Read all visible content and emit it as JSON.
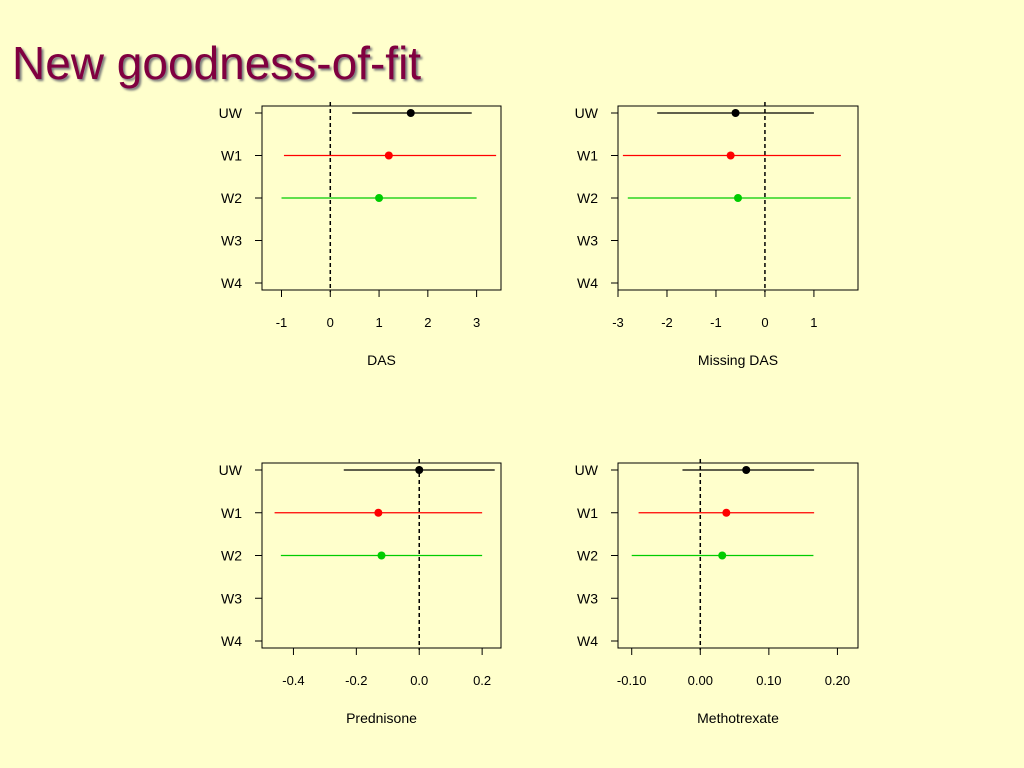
{
  "slide": {
    "title": "New goodness-of-fit"
  },
  "colors": {
    "UW": "#000000",
    "W1": "#FF0000",
    "W2": "#00CC00",
    "W3": "#0000FF",
    "W4": "#00CCCC",
    "title": "#800040",
    "background": "#FFFFCC"
  },
  "chart_data": [
    {
      "type": "forest",
      "xlabel": "DAS",
      "categories": [
        "UW",
        "W1",
        "W2",
        "W3",
        "W4"
      ],
      "xlim": [
        -1.4,
        3.5
      ],
      "xticks": [
        -1,
        0,
        1,
        2,
        3
      ],
      "xtick_labels": [
        "-1",
        "0",
        "1",
        "2",
        "3"
      ],
      "reference_line": 0,
      "estimates": [
        {
          "label": "UW",
          "est": 1.65,
          "lo": 0.45,
          "hi": 2.9
        },
        {
          "label": "W1",
          "est": 1.2,
          "lo": -0.95,
          "hi": 3.4
        },
        {
          "label": "W2",
          "est": 1.0,
          "lo": -1.0,
          "hi": 3.0
        }
      ]
    },
    {
      "type": "forest",
      "xlabel": "Missing DAS",
      "categories": [
        "UW",
        "W1",
        "W2",
        "W3",
        "W4"
      ],
      "xlim": [
        -3.0,
        1.9
      ],
      "xticks": [
        -3,
        -2,
        -1,
        0,
        1
      ],
      "xtick_labels": [
        "-3",
        "-2",
        "-1",
        "0",
        "1"
      ],
      "reference_line": 0,
      "estimates": [
        {
          "label": "UW",
          "est": -0.6,
          "lo": -2.2,
          "hi": 1.0
        },
        {
          "label": "W1",
          "est": -0.7,
          "lo": -2.9,
          "hi": 1.55
        },
        {
          "label": "W2",
          "est": -0.55,
          "lo": -2.8,
          "hi": 1.75
        }
      ]
    },
    {
      "type": "forest",
      "xlabel": "Prednisone",
      "categories": [
        "UW",
        "W1",
        "W2",
        "W3",
        "W4"
      ],
      "xlim": [
        -0.5,
        0.26
      ],
      "xticks": [
        -0.4,
        -0.2,
        0.0,
        0.2
      ],
      "xtick_labels": [
        "-0.4",
        "-0.2",
        "0.0",
        "0.2"
      ],
      "reference_line": 0,
      "estimates": [
        {
          "label": "UW",
          "est": 0.0,
          "lo": -0.24,
          "hi": 0.24
        },
        {
          "label": "W1",
          "est": -0.13,
          "lo": -0.46,
          "hi": 0.2
        },
        {
          "label": "W2",
          "est": -0.12,
          "lo": -0.44,
          "hi": 0.2
        }
      ]
    },
    {
      "type": "forest",
      "xlabel": "Methotrexate",
      "categories": [
        "UW",
        "W1",
        "W2",
        "W3",
        "W4"
      ],
      "xlim": [
        -0.12,
        0.23
      ],
      "xticks": [
        -0.1,
        0.0,
        0.1,
        0.2
      ],
      "xtick_labels": [
        "-0.10",
        "0.00",
        "0.10",
        "0.20"
      ],
      "reference_line": 0,
      "estimates": [
        {
          "label": "UW",
          "est": 0.067,
          "lo": -0.026,
          "hi": 0.166
        },
        {
          "label": "W1",
          "est": 0.038,
          "lo": -0.09,
          "hi": 0.166
        },
        {
          "label": "W2",
          "est": 0.032,
          "lo": -0.1,
          "hi": 0.165
        }
      ]
    }
  ]
}
